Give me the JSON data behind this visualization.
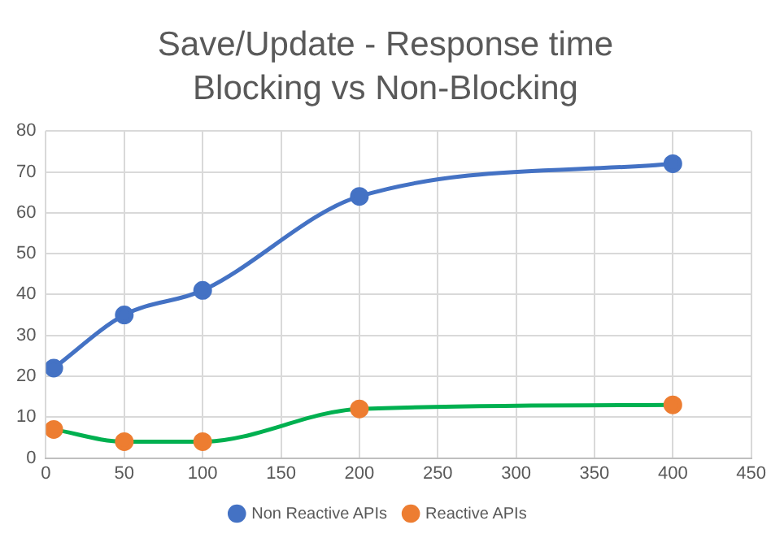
{
  "chart_data": {
    "type": "line",
    "title": "Save/Update - Response time",
    "subtitle": "Blocking vs Non-Blocking",
    "x": [
      5,
      50,
      100,
      200,
      400
    ],
    "series": [
      {
        "name": "Non Reactive APIs",
        "color": "#4472c4",
        "values": [
          22,
          35,
          41,
          64,
          72
        ]
      },
      {
        "name": "Reactive APIs",
        "color": "#00b050",
        "colors": [
          "#ed7d31",
          "#ed7d31",
          "#ed7d31",
          "#ed7d31",
          "#ed7d31"
        ],
        "values": [
          7,
          4,
          4,
          12,
          13
        ]
      }
    ],
    "xlim": [
      0,
      450
    ],
    "xticks": [
      0,
      50,
      100,
      150,
      200,
      250,
      300,
      350,
      400,
      450
    ],
    "ylim": [
      0,
      80
    ],
    "yticks": [
      0,
      10,
      20,
      30,
      40,
      50,
      60,
      70,
      80
    ],
    "grid": true,
    "legend": "bottom",
    "marker": "circle",
    "line_style": "solid"
  }
}
